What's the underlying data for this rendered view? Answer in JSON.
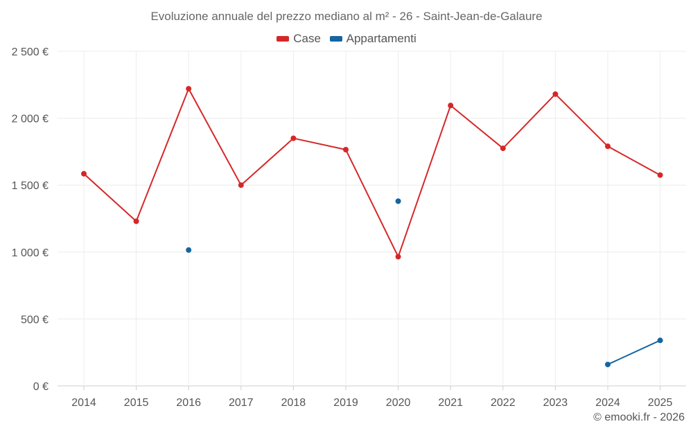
{
  "chart_data": {
    "type": "line",
    "title": "Evoluzione annuale del prezzo mediano al m² - 26 - Saint-Jean-de-Galaure",
    "xlabel": "",
    "ylabel": "",
    "categories": [
      "2014",
      "2015",
      "2016",
      "2017",
      "2018",
      "2019",
      "2020",
      "2021",
      "2022",
      "2023",
      "2024",
      "2025"
    ],
    "ylim": [
      0,
      2500
    ],
    "yticks": [
      0,
      500,
      1000,
      1500,
      2000,
      2500
    ],
    "ytick_labels": [
      "0 €",
      "500 €",
      "1 000 €",
      "1 500 €",
      "2 000 €",
      "2 500 €"
    ],
    "grid": true,
    "legend_position": "top-center",
    "series": [
      {
        "name": "Case",
        "color": "#d62728",
        "values": [
          1585,
          1230,
          2220,
          1500,
          1850,
          1765,
          965,
          2095,
          1775,
          2180,
          1790,
          1575
        ]
      },
      {
        "name": "Appartamenti",
        "color": "#1565a0",
        "values": [
          null,
          null,
          1015,
          null,
          null,
          null,
          1380,
          null,
          null,
          null,
          160,
          340
        ]
      }
    ]
  },
  "credit": "© emooki.fr - 2026"
}
